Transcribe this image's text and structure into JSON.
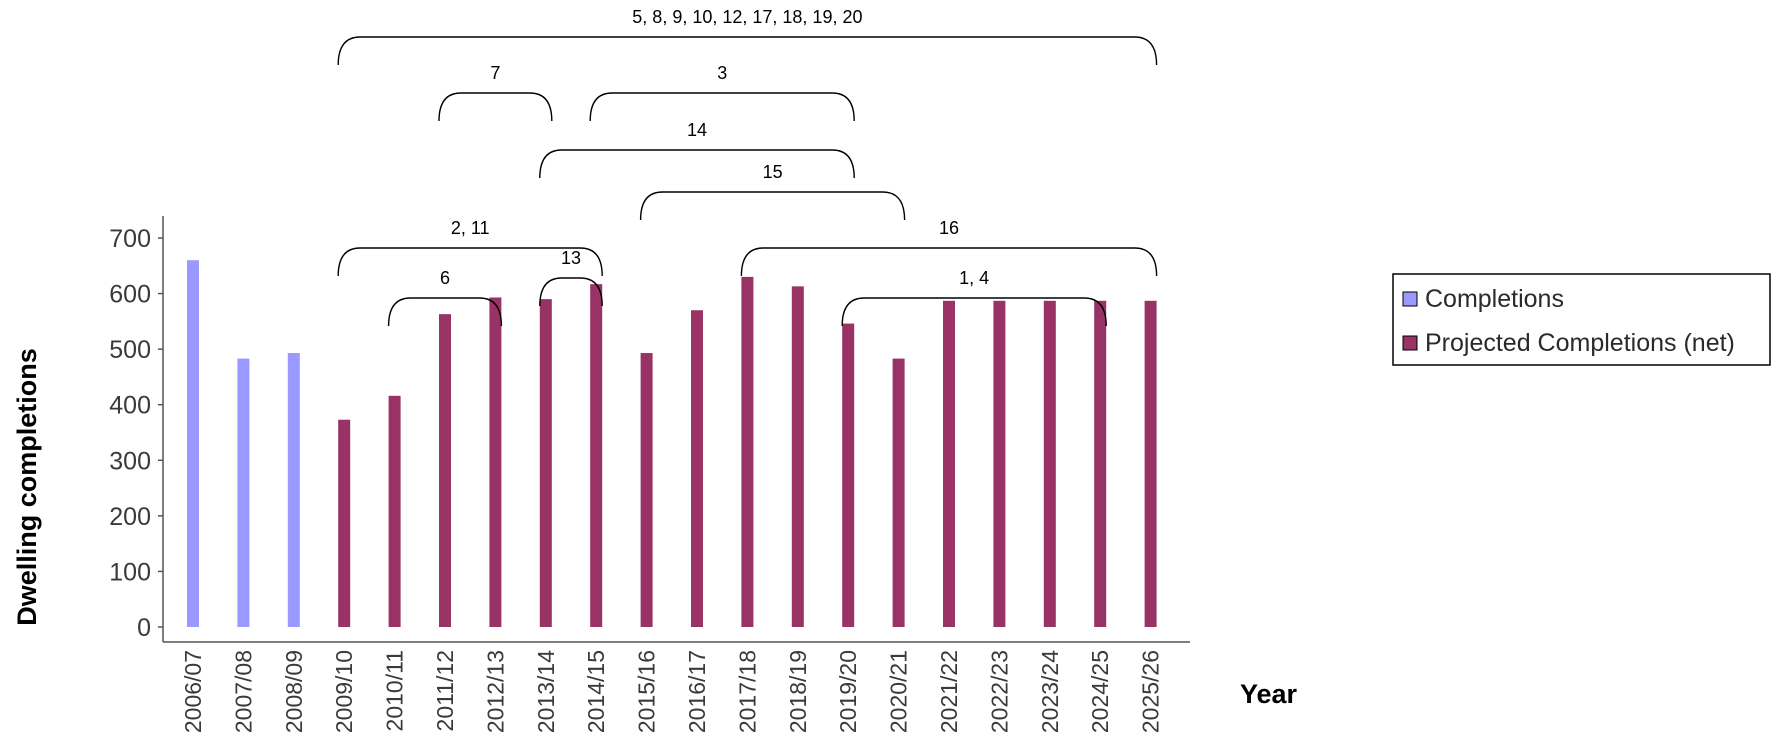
{
  "chart_data": {
    "type": "bar",
    "xlabel": "Year",
    "ylabel": "Dwelling completions",
    "ylim": [
      0,
      700
    ],
    "yticks": [
      0,
      100,
      200,
      300,
      400,
      500,
      600,
      700
    ],
    "categories": [
      "2006/07",
      "2007/08",
      "2008/09",
      "2009/10",
      "2010/11",
      "2011/12",
      "2012/13",
      "2013/14",
      "2014/15",
      "2015/16",
      "2016/17",
      "2017/18",
      "2018/19",
      "2019/20",
      "2020/21",
      "2021/22",
      "2022/23",
      "2023/24",
      "2024/25",
      "2025/26"
    ],
    "series": [
      {
        "name": "Completions",
        "color": "#9999ff",
        "values": [
          660,
          483,
          493,
          null,
          null,
          null,
          null,
          null,
          null,
          null,
          null,
          null,
          null,
          null,
          null,
          null,
          null,
          null,
          null,
          null
        ]
      },
      {
        "name": "Projected Completions (net)",
        "color": "#993366",
        "values": [
          null,
          null,
          null,
          373,
          416,
          563,
          593,
          590,
          617,
          493,
          570,
          630,
          613,
          546,
          483,
          587,
          587,
          587,
          587,
          587
        ]
      }
    ],
    "legend": "right",
    "grid": false,
    "annotations": [
      {
        "label": "5, 8, 9, 10, 12, 17, 18, 19, 20",
        "from": "2009/10",
        "to": "2025/26"
      },
      {
        "label": "7",
        "from": "2011/12",
        "to": "2013/14"
      },
      {
        "label": "3",
        "from": "2014/15",
        "to": "2019/20"
      },
      {
        "label": "14",
        "from": "2013/14",
        "to": "2019/20"
      },
      {
        "label": "15",
        "from": "2015/16",
        "to": "2020/21"
      },
      {
        "label": "2, 11",
        "from": "2009/10",
        "to": "2014/15"
      },
      {
        "label": "16",
        "from": "2017/18",
        "to": "2025/26"
      },
      {
        "label": "6",
        "from": "2010/11",
        "to": "2012/13"
      },
      {
        "label": "13",
        "from": "2013/14",
        "to": "2014/15"
      },
      {
        "label": "1, 4",
        "from": "2019/20",
        "to": "2024/25"
      }
    ]
  }
}
